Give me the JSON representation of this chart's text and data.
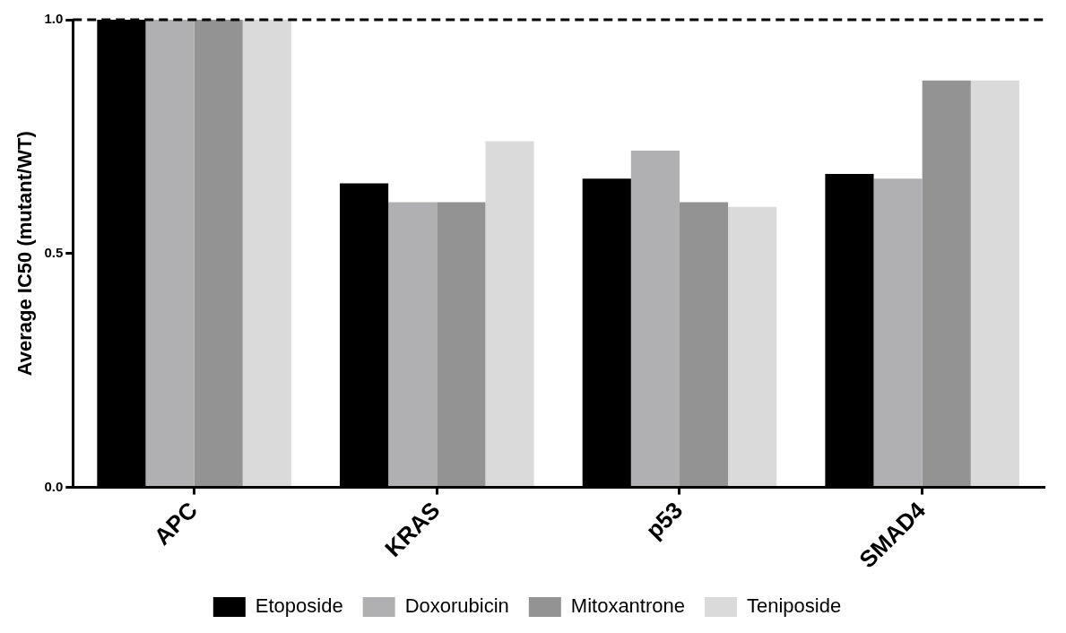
{
  "chart_data": {
    "type": "bar",
    "ylabel": "Average IC50 (mutant/WT)",
    "categories": [
      "APC",
      "KRAS",
      "p53",
      "SMAD4"
    ],
    "series": [
      {
        "name": "Etoposide",
        "color": "#000000",
        "values": [
          1.0,
          0.65,
          0.66,
          0.67
        ]
      },
      {
        "name": "Doxorubicin",
        "color": "#b0b0b2",
        "values": [
          1.0,
          0.61,
          0.72,
          0.66
        ]
      },
      {
        "name": "Mitoxantrone",
        "color": "#939393",
        "values": [
          1.0,
          0.61,
          0.61,
          0.87
        ]
      },
      {
        "name": "Teniposide",
        "color": "#dadada",
        "values": [
          1.0,
          0.74,
          0.6,
          0.87
        ]
      }
    ],
    "ylim": [
      0,
      1
    ],
    "yticks": [
      {
        "value": 0,
        "label": "0.0"
      },
      {
        "value": 0.5,
        "label": "0.5"
      },
      {
        "value": 1,
        "label": "1.0"
      }
    ],
    "ref_lines": [
      {
        "axis": "y",
        "value": 1,
        "line_style": "dashed",
        "color": "#000000"
      }
    ],
    "grid": false,
    "legend": "bottom"
  }
}
